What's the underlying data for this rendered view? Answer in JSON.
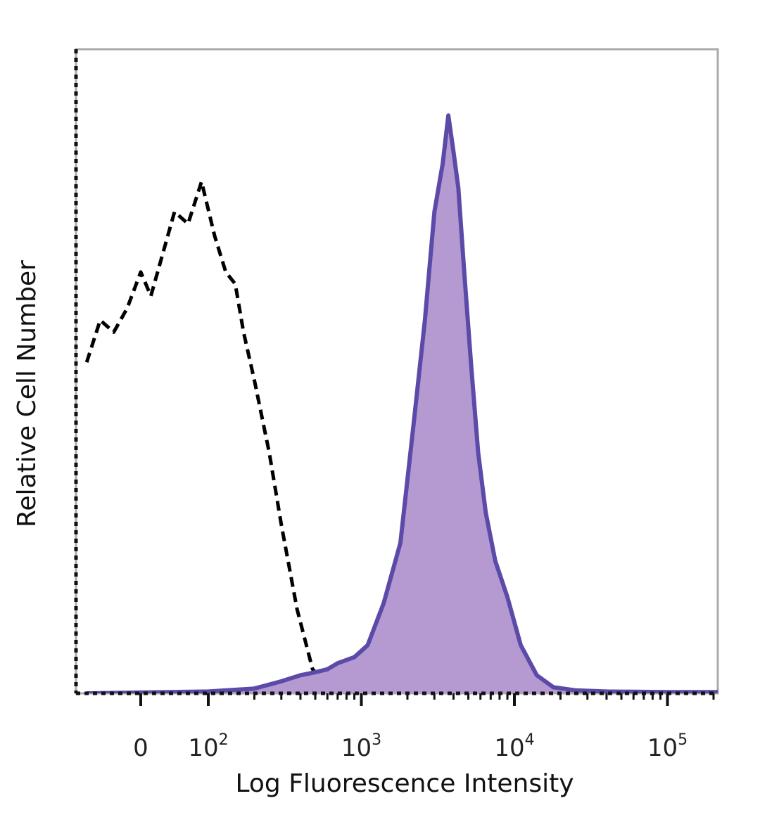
{
  "chart_data": {
    "type": "area",
    "title": "",
    "xlabel": "Log Fluorescence Intensity",
    "ylabel": "Relative Cell Number",
    "x_scale": "biexponential (log above 10^2)",
    "xlim": [
      -80,
      250000
    ],
    "ylim": [
      0,
      100
    ],
    "grid": false,
    "x_ticks": [
      {
        "value": 0,
        "label": "0",
        "base": "",
        "exp": ""
      },
      {
        "value": 100,
        "label": "10^2",
        "base": "10",
        "exp": "2"
      },
      {
        "value": 1000,
        "label": "10^3",
        "base": "10",
        "exp": "3"
      },
      {
        "value": 10000,
        "label": "10^4",
        "base": "10",
        "exp": "4"
      },
      {
        "value": 100000,
        "label": "10^5",
        "base": "10",
        "exp": "5"
      }
    ],
    "series": [
      {
        "style": "dashed-black",
        "color": "#000000",
        "x": [
          -80,
          -60,
          -40,
          -20,
          0,
          15,
          30,
          50,
          70,
          90,
          110,
          130,
          150,
          170,
          200,
          250,
          300,
          380,
          480,
          600,
          800,
          1000,
          1300,
          2000
        ],
        "y": [
          55,
          62,
          60,
          64,
          70,
          66,
          72,
          80,
          78,
          85,
          76,
          70,
          68,
          60,
          52,
          40,
          28,
          14,
          4,
          1.5,
          0.8,
          0.4,
          0.2,
          0
        ]
      },
      {
        "style": "filled-purple",
        "color": "#5b4aa8",
        "fill": "#b49ad1",
        "x": [
          -80,
          100,
          200,
          300,
          400,
          500,
          600,
          700,
          900,
          1100,
          1400,
          1800,
          2200,
          2600,
          3000,
          3400,
          3700,
          4000,
          4300,
          4700,
          5200,
          5800,
          6500,
          7500,
          9000,
          11000,
          14000,
          18000,
          25000,
          40000,
          100000,
          250000
        ],
        "y": [
          0,
          0.3,
          0.8,
          2,
          3,
          3.5,
          4,
          5,
          6,
          8,
          15,
          25,
          45,
          62,
          80,
          88,
          96,
          90,
          84,
          70,
          55,
          40,
          30,
          22,
          16,
          8,
          3,
          1,
          0.5,
          0.3,
          0.2,
          0.2
        ]
      }
    ]
  }
}
